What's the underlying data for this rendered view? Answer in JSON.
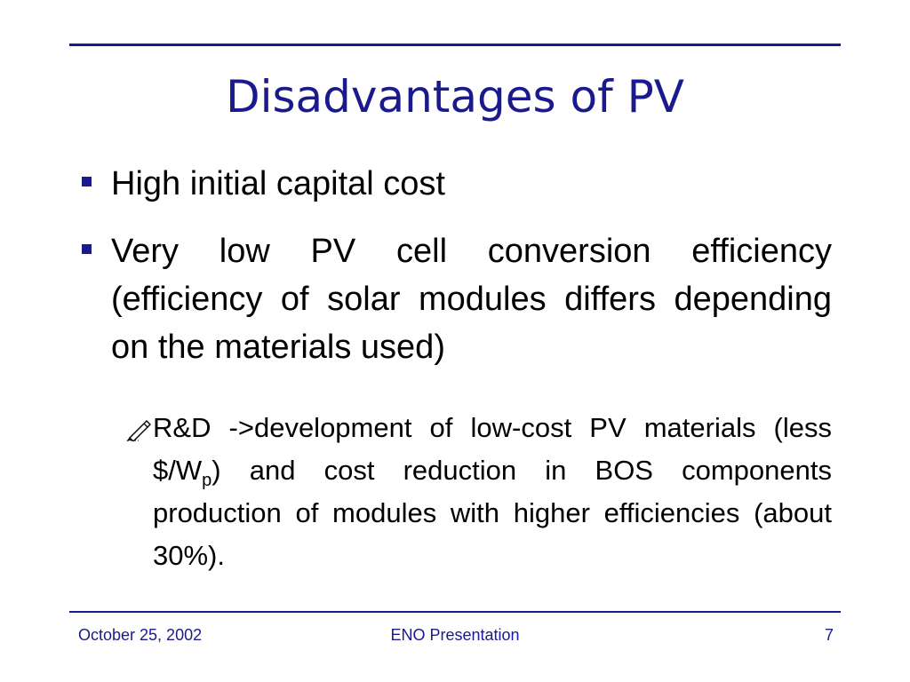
{
  "slide": {
    "title": "Disadvantages of PV",
    "bullets": [
      {
        "text": "High initial capital cost"
      },
      {
        "text": "Very low PV cell conversion efficiency (efficiency of solar modules differs depending on the materials used)"
      }
    ],
    "sub_bullet": {
      "icon": "writing-hand-icon",
      "part1": "R&D ->development of low-cost PV materials (less $/W",
      "subscript": "p",
      "part2": ") and cost reduction in BOS components production of modules with higher efficiencies (about 30%)."
    }
  },
  "footer": {
    "date": "October 25, 2002",
    "presentation": "ENO Presentation",
    "page_number": "7"
  },
  "colors": {
    "accent": "#1a1a8c",
    "text": "#000000",
    "background": "#ffffff"
  }
}
